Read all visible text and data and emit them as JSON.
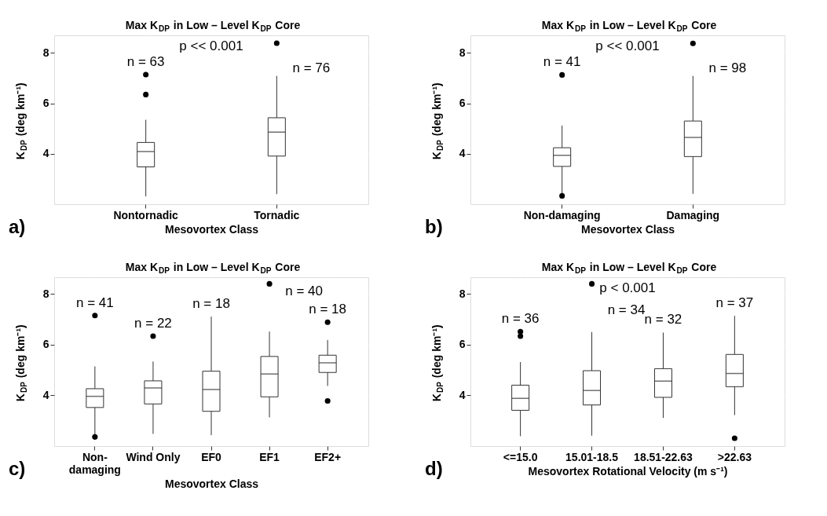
{
  "chart_data": [
    {
      "type": "box",
      "title": "Max K$_{DP}$ in Low – Level K$_{DP}$ Core",
      "xlabel": "Mesovortex Class",
      "ylabel": "K$_{DP}$ (deg km⁻¹)",
      "categories": [
        "Nontornadic",
        "Tornadic"
      ],
      "boxes": [
        {
          "low": 2.31,
          "q1": 3.48,
          "median": 4.09,
          "q3": 4.45,
          "high": 5.35,
          "outliers": [
            6.35,
            7.14
          ]
        },
        {
          "low": 2.4,
          "q1": 3.91,
          "median": 4.86,
          "q3": 5.43,
          "high": 7.09,
          "outliers": [
            8.39
          ]
        }
      ],
      "ylim": [
        2.0,
        8.7
      ],
      "yticks": [
        4,
        6,
        8
      ],
      "grid": true,
      "annotations": [
        "p << 0.001",
        "n = 63",
        "n = 76",
        "a)"
      ]
    },
    {
      "type": "box",
      "title": "Max K$_{DP}$ in Low – Level K$_{DP}$ Core",
      "xlabel": "Mesovortex Class",
      "ylabel": "K$_{DP}$ (deg km⁻¹)",
      "categories": [
        "Non-damaging",
        "Damaging"
      ],
      "boxes": [
        {
          "low": 2.4,
          "q1": 3.5,
          "median": 3.94,
          "q3": 4.24,
          "high": 5.12,
          "outliers": [
            2.33,
            7.13
          ]
        },
        {
          "low": 2.41,
          "q1": 3.89,
          "median": 4.65,
          "q3": 5.3,
          "high": 7.09,
          "outliers": [
            8.38
          ]
        }
      ],
      "ylim": [
        2.0,
        8.7
      ],
      "yticks": [
        4,
        6,
        8
      ],
      "grid": true,
      "annotations": [
        "p << 0.001",
        "n = 41",
        "n = 98",
        "b)"
      ]
    },
    {
      "type": "box",
      "title": "Max K$_{DP}$ in Low – Level K$_{DP}$ Core",
      "xlabel": "Mesovortex Class",
      "ylabel": "K$_{DP}$ (deg km⁻¹)",
      "categories": [
        "Non-damaging",
        "Wind Only",
        "EF0",
        "EF1",
        "EF2+"
      ],
      "boxes": [
        {
          "low": 2.4,
          "q1": 3.52,
          "median": 3.96,
          "q3": 4.26,
          "high": 5.14,
          "outliers": [
            2.36,
            7.14
          ]
        },
        {
          "low": 2.48,
          "q1": 3.66,
          "median": 4.29,
          "q3": 4.57,
          "high": 5.33,
          "outliers": [
            6.33
          ]
        },
        {
          "low": 2.43,
          "q1": 3.37,
          "median": 4.23,
          "q3": 4.95,
          "high": 7.1
        },
        {
          "low": 3.13,
          "q1": 3.94,
          "median": 4.84,
          "q3": 5.53,
          "high": 6.51,
          "outliers": [
            8.39
          ]
        },
        {
          "low": 4.37,
          "q1": 4.9,
          "median": 5.28,
          "q3": 5.58,
          "high": 6.18,
          "outliers": [
            3.78,
            6.88
          ]
        }
      ],
      "ylim": [
        2.0,
        8.65
      ],
      "yticks": [
        4,
        6,
        8
      ],
      "grid": true,
      "annotations": [
        "n = 41",
        "n = 22",
        "n = 18",
        "n = 40",
        "n = 18",
        "c)"
      ]
    },
    {
      "type": "box",
      "title": "Max K$_{DP}$ in Low – Level K$_{DP}$ Core",
      "xlabel": "Mesovortex Rotational Velocity (m s⁻¹)",
      "ylabel": "K$_{DP}$ (deg km⁻¹)",
      "categories": [
        "<=15.0",
        "15.01-18.5",
        "18.51-22.63",
        ">22.63"
      ],
      "boxes": [
        {
          "low": 2.39,
          "q1": 3.41,
          "median": 3.88,
          "q3": 4.4,
          "high": 5.31,
          "outliers": [
            6.33,
            6.51
          ]
        },
        {
          "low": 2.41,
          "q1": 3.62,
          "median": 4.19,
          "q3": 4.97,
          "high": 6.49,
          "outliers": [
            8.39
          ]
        },
        {
          "low": 3.11,
          "q1": 3.92,
          "median": 4.56,
          "q3": 5.05,
          "high": 6.47
        },
        {
          "low": 3.22,
          "q1": 4.34,
          "median": 4.86,
          "q3": 5.61,
          "high": 7.13,
          "outliers": [
            2.31
          ]
        }
      ],
      "ylim": [
        2.0,
        8.65
      ],
      "yticks": [
        4,
        6,
        8
      ],
      "grid": true,
      "annotations": [
        "p < 0.001",
        "n = 36",
        "n = 34",
        "n = 32",
        "n = 37",
        "d)"
      ]
    }
  ]
}
